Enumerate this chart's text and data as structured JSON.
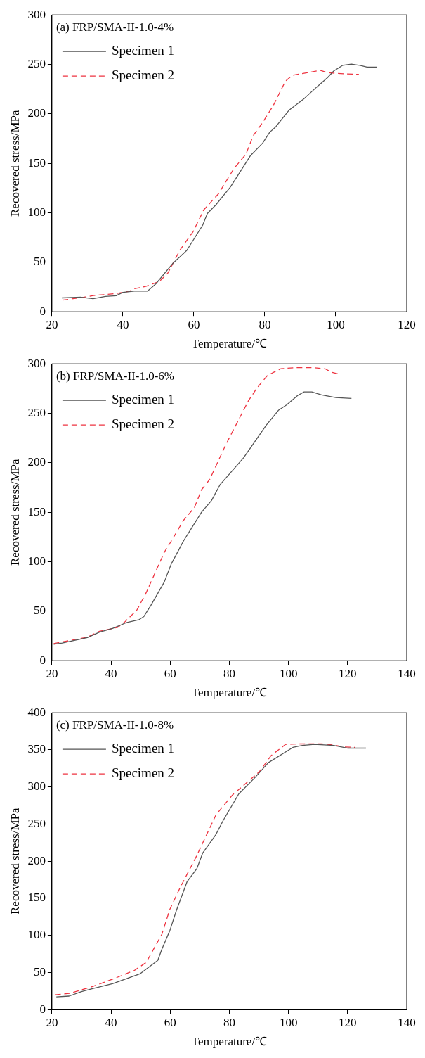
{
  "chart_data": [
    {
      "type": "line",
      "title": "(a) FRP/SMA-II-1.0-4%",
      "xlabel": "Temperature/℃",
      "ylabel": "Recovered stress/MPa",
      "xlim": [
        20,
        120
      ],
      "xticks": [
        20,
        40,
        60,
        80,
        100,
        120
      ],
      "ylim": [
        0,
        300
      ],
      "yticks": [
        0,
        50,
        100,
        150,
        200,
        250,
        300
      ],
      "legend": "top left",
      "series": [
        {
          "name": "Specimen 1",
          "color": "#555555",
          "line_style": "solid",
          "x": [
            22.8,
            28.3,
            31.6,
            35.1,
            38.1,
            40,
            43.2,
            46.9,
            49.3,
            54,
            58,
            62.5,
            63.8,
            66.2,
            70.3,
            76,
            79.4,
            81.4,
            83.1,
            86.8,
            91.2,
            94.6,
            97.7,
            99.4,
            101.9,
            104.4,
            106.8,
            108.8,
            111.5
          ],
          "values": [
            14,
            14.7,
            13.2,
            15.5,
            16.2,
            19.6,
            20.8,
            20.8,
            28.2,
            48.6,
            62,
            87.6,
            99.3,
            108,
            126,
            158,
            170.5,
            181.5,
            187,
            203.6,
            215.8,
            227,
            236.7,
            243.3,
            249,
            250.2,
            249,
            247.2,
            247.2
          ]
        },
        {
          "name": "Specimen 2",
          "color": "#ee3340",
          "line_style": "dashed",
          "x": [
            23,
            28.3,
            31.7,
            38.1,
            41.9,
            43.2,
            46.6,
            50.3,
            52.7,
            56.1,
            59.8,
            62.8,
            66.9,
            71.3,
            74.7,
            76.7,
            79.4,
            82.4,
            85.8,
            87.8,
            91.9,
            95.6,
            97.7,
            102.7,
            106.5
          ],
          "values": [
            11.8,
            14.2,
            16.4,
            18.4,
            20.8,
            23.3,
            25.8,
            30.7,
            39.2,
            62.5,
            81,
            103,
            119,
            144.7,
            159.4,
            177.8,
            191.3,
            208.5,
            233,
            239,
            241.6,
            244,
            241.6,
            240.4,
            239.9
          ]
        }
      ]
    },
    {
      "type": "line",
      "title": "(b) FRP/SMA-II-1.0-6%",
      "xlabel": "Temperature/℃",
      "ylabel": "Recovered stress/MPa",
      "xlim": [
        20,
        140
      ],
      "xticks": [
        20,
        40,
        60,
        80,
        100,
        120,
        140
      ],
      "ylim": [
        0,
        300
      ],
      "yticks": [
        0,
        50,
        100,
        150,
        200,
        250,
        300
      ],
      "legend": "top left",
      "series": [
        {
          "name": "Specimen 1",
          "color": "#555555",
          "line_style": "solid",
          "x": [
            20.6,
            23.5,
            32,
            36.1,
            40.5,
            45.4,
            49.5,
            51.1,
            53.5,
            58,
            60.4,
            64.5,
            70.6,
            74,
            76.9,
            84.8,
            92.5,
            96.6,
            99.4,
            103.1,
            105.3,
            107.9,
            111.2,
            116,
            121.3
          ],
          "values": [
            16.6,
            17.8,
            23.4,
            28.8,
            32.6,
            38.7,
            41.5,
            44.6,
            56,
            79.5,
            98,
            121,
            150,
            162,
            178,
            205,
            238,
            253,
            258.5,
            268,
            271.6,
            271.6,
            268.6,
            266,
            265
          ]
        },
        {
          "name": "Specimen 2",
          "color": "#ee3340",
          "line_style": "dashed",
          "x": [
            20.6,
            32,
            36.1,
            42.2,
            44.6,
            48.7,
            51.9,
            58,
            60.4,
            64.5,
            68.2,
            70.6,
            73.4,
            78.7,
            86.4,
            89.2,
            92.9,
            97.4,
            102.3,
            107.9,
            112.4,
            114.4,
            116.7
          ],
          "values": [
            17.3,
            23.7,
            29.8,
            33.6,
            39,
            51,
            68.8,
            109.5,
            121,
            141.8,
            154.8,
            172.7,
            183.3,
            217.7,
            262.3,
            275,
            288.3,
            295,
            296.2,
            296.2,
            295,
            291.7,
            289.9
          ]
        }
      ]
    },
    {
      "type": "line",
      "title": "(c) FRP/SMA-II-1.0-8%",
      "xlabel": "Temperature/℃",
      "ylabel": "Recovered stress/MPa",
      "xlim": [
        20,
        140
      ],
      "xticks": [
        20,
        40,
        60,
        80,
        100,
        120,
        140
      ],
      "ylim": [
        0,
        400
      ],
      "yticks": [
        0,
        50,
        100,
        150,
        200,
        250,
        300,
        350,
        400
      ],
      "legend": "top left",
      "series": [
        {
          "name": "Specimen 1",
          "color": "#555555",
          "line_style": "solid",
          "x": [
            21.5,
            25.8,
            30,
            34,
            40.5,
            49.9,
            55.8,
            57.2,
            59.9,
            62.1,
            65.7,
            69,
            71,
            75.5,
            77.9,
            83.2,
            88.5,
            93.2,
            101.5,
            104.7,
            108.8,
            115.3,
            120.1,
            126.2
          ],
          "values": [
            17.2,
            18.2,
            24.2,
            28.6,
            35,
            48.5,
            66.3,
            81.4,
            106.7,
            133.6,
            172.3,
            189.8,
            211,
            236.2,
            254.7,
            290.7,
            311.9,
            332.8,
            353.3,
            356,
            357.4,
            356,
            352.3,
            352.3
          ]
        },
        {
          "name": "Specimen 2",
          "color": "#ee3340",
          "line_style": "dashed",
          "x": [
            21.1,
            25.9,
            33.2,
            40.5,
            47.9,
            51.9,
            57.2,
            59.9,
            63.3,
            69,
            75.5,
            81.1,
            90.1,
            94.1,
            99,
            103,
            111.1,
            115.1,
            118.8,
            122.5
          ],
          "values": [
            19.9,
            21.9,
            30.3,
            41,
            52.8,
            63.6,
            101.6,
            135.3,
            163.9,
            207.6,
            262.5,
            289.4,
            320.3,
            342.2,
            357.4,
            358,
            358,
            356.7,
            354,
            353.3
          ]
        }
      ]
    }
  ]
}
